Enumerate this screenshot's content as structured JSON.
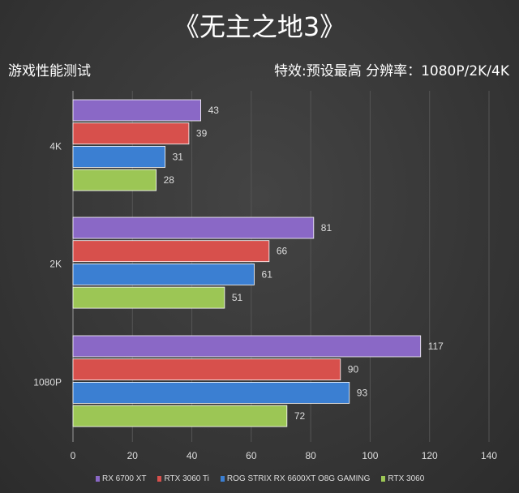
{
  "header": {
    "title": "《无主之地3》",
    "subtitle_left": "游戏性能测试",
    "subtitle_right": "特效:预设最高  分辨率：1080P/2K/4K"
  },
  "chart_data": {
    "type": "bar",
    "orientation": "horizontal",
    "title": "《无主之地3》",
    "categories": [
      "4K",
      "2K",
      "1080P"
    ],
    "series": [
      {
        "name": "RX 6700 XT",
        "color": "#8a68c6",
        "values": [
          43,
          81,
          117
        ]
      },
      {
        "name": "RTX 3060 Ti",
        "color": "#d7504c",
        "values": [
          39,
          66,
          90
        ]
      },
      {
        "name": "ROG STRIX RX 6600XT O8G GAMING",
        "color": "#3b7fd2",
        "values": [
          31,
          61,
          93
        ]
      },
      {
        "name": "RTX 3060",
        "color": "#9cc655",
        "values": [
          28,
          51,
          72
        ]
      }
    ],
    "xlim": [
      0,
      140
    ],
    "xticks": [
      0,
      20,
      40,
      60,
      80,
      100,
      120,
      140
    ],
    "grid": true,
    "legend": "bottom"
  }
}
